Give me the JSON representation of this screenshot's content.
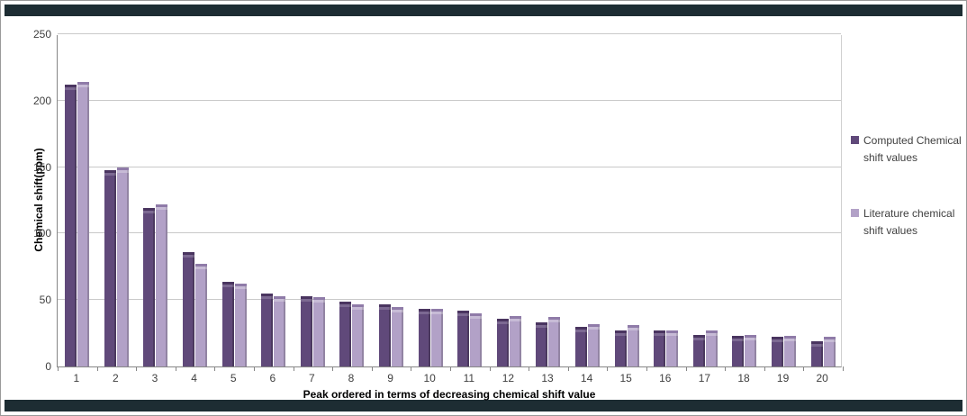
{
  "banners": {
    "top": "",
    "bottom": ""
  },
  "chart_data": {
    "type": "bar",
    "title": "",
    "xlabel": "Peak ordered in terms of decreasing chemical shift value",
    "ylabel": "Chemical shift(ppm)",
    "ylim": [
      0,
      250
    ],
    "ytick_step": 50,
    "yticks": [
      "0",
      "50",
      "100",
      "150",
      "200",
      "250"
    ],
    "grid": true,
    "legend_position": "right",
    "categories": [
      "1",
      "2",
      "3",
      "4",
      "5",
      "6",
      "7",
      "8",
      "9",
      "10",
      "11",
      "12",
      "13",
      "14",
      "15",
      "16",
      "17",
      "18",
      "19",
      "20"
    ],
    "series": [
      {
        "name": "Computed Chemical shift values",
        "color": "#60497a",
        "values": [
          210,
          146,
          117,
          84,
          62,
          53,
          51,
          47,
          45,
          41,
          40,
          34,
          31,
          28,
          25,
          25,
          22,
          21,
          20,
          17
        ]
      },
      {
        "name": "Literature chemical shift values",
        "color": "#b2a1c7",
        "values": [
          212,
          148,
          120,
          75,
          60,
          51,
          50,
          45,
          43,
          41,
          38,
          36,
          35,
          30,
          29,
          25,
          25,
          22,
          21,
          20
        ]
      }
    ]
  }
}
